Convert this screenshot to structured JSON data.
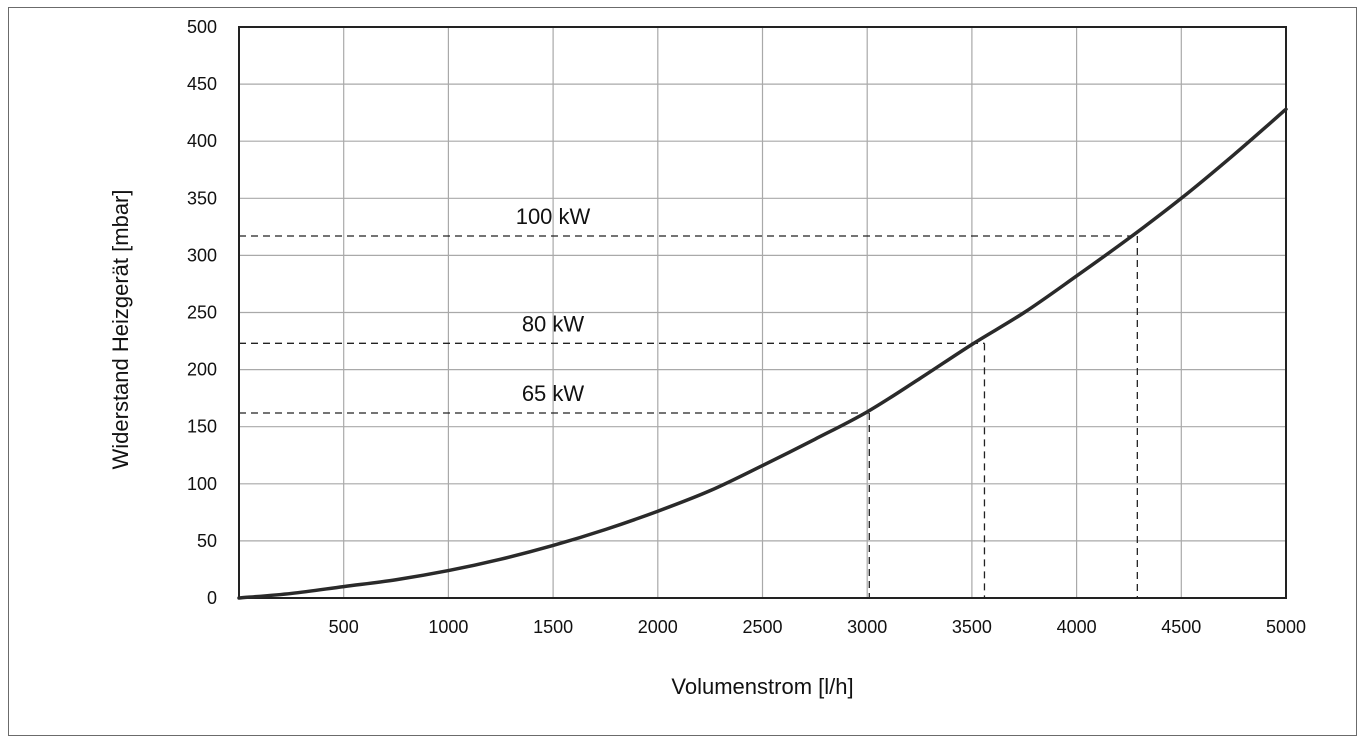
{
  "chart_data": {
    "type": "line",
    "title": "",
    "xlabel": "Volumenstrom [l/h]",
    "ylabel": "Widerstand Heizgerät [mbar]",
    "xlim": [
      0,
      5000
    ],
    "ylim": [
      0,
      500
    ],
    "xticks": [
      500,
      1000,
      1500,
      2000,
      2500,
      3000,
      3500,
      4000,
      4500,
      5000
    ],
    "yticks": [
      0,
      50,
      100,
      150,
      200,
      250,
      300,
      350,
      400,
      450,
      500
    ],
    "grid": true,
    "series": [
      {
        "x": [
          0,
          250,
          500,
          750,
          1000,
          1250,
          1500,
          1750,
          2000,
          2250,
          2500,
          2750,
          3000,
          3250,
          3500,
          3750,
          4000,
          4250,
          4500,
          4750,
          5000
        ],
        "y": [
          0,
          4,
          10,
          16,
          24,
          34,
          46,
          60,
          76,
          94,
          116,
          139,
          163,
          192,
          222,
          250,
          282,
          315,
          350,
          388,
          428
        ]
      }
    ],
    "annotations": [
      {
        "label": "100 kW",
        "x": 4290,
        "y": 317
      },
      {
        "label": "80 kW",
        "x": 3560,
        "y": 223
      },
      {
        "label": "65 kW",
        "x": 3010,
        "y": 162
      }
    ]
  }
}
